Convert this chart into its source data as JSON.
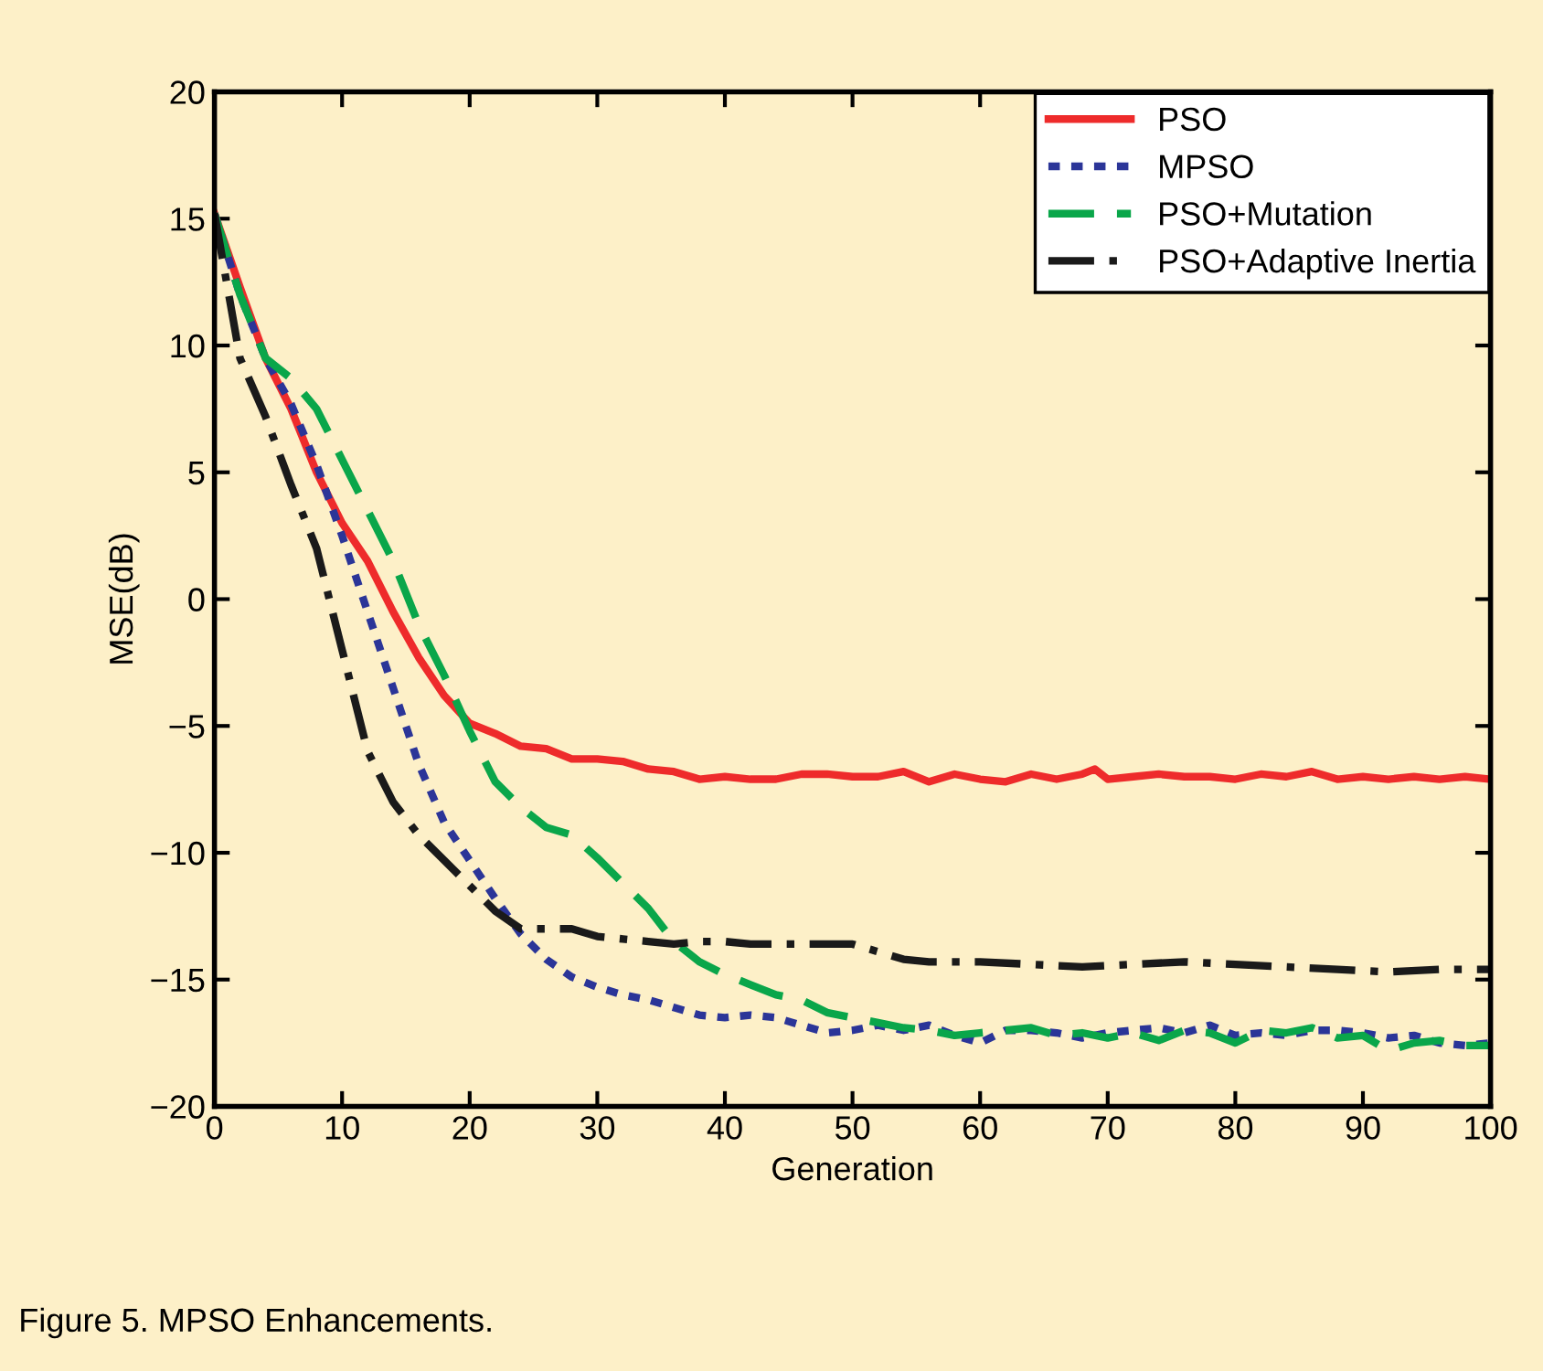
{
  "chart_data": {
    "type": "line",
    "xlabel": "Generation",
    "ylabel": "MSE(dB)",
    "xlim": [
      0,
      100
    ],
    "ylim": [
      -20,
      20
    ],
    "xticks": [
      0,
      10,
      20,
      30,
      40,
      50,
      60,
      70,
      80,
      90,
      100
    ],
    "yticks": [
      -20,
      -15,
      -10,
      -5,
      0,
      5,
      10,
      15,
      20
    ],
    "grid": false,
    "legend": "top right",
    "annotations": [
      "Figure 5. MPSO Enhancements."
    ],
    "series": [
      {
        "name": "PSO",
        "color": "#ee2b2b",
        "line_style": "solid",
        "x": [
          0,
          2,
          4,
          6,
          8,
          10,
          12,
          14,
          16,
          18,
          20,
          22,
          24,
          26,
          28,
          30,
          32,
          34,
          36,
          38,
          40,
          42,
          44,
          46,
          48,
          50,
          52,
          54,
          56,
          58,
          60,
          62,
          64,
          66,
          68,
          69,
          70,
          72,
          74,
          76,
          78,
          80,
          82,
          84,
          86,
          88,
          90,
          92,
          94,
          96,
          98,
          100
        ],
        "values": [
          15.2,
          12.3,
          9.5,
          7.5,
          5,
          3,
          1.5,
          -0.5,
          -2.3,
          -3.8,
          -4.9,
          -5.3,
          -5.8,
          -5.9,
          -6.3,
          -6.3,
          -6.4,
          -6.7,
          -6.8,
          -7.1,
          -7.0,
          -7.1,
          -7.1,
          -6.9,
          -6.9,
          -7.0,
          -7.0,
          -6.8,
          -7.2,
          -6.9,
          -7.1,
          -7.2,
          -6.9,
          -7.1,
          -6.9,
          -6.7,
          -7.1,
          -7.0,
          -6.9,
          -7.0,
          -7.0,
          -7.1,
          -6.9,
          -7.0,
          -6.8,
          -7.1,
          -7.0,
          -7.1,
          -7.0,
          -7.1,
          -7.0,
          -7.1
        ]
      },
      {
        "name": "MPSO",
        "color": "#2b3598",
        "line_style": "dotted",
        "x": [
          0,
          2,
          4,
          6,
          8,
          10,
          12,
          14,
          16,
          18,
          20,
          22,
          24,
          26,
          28,
          30,
          32,
          34,
          36,
          38,
          40,
          42,
          44,
          46,
          48,
          50,
          52,
          54,
          56,
          58,
          60,
          62,
          64,
          66,
          68,
          70,
          72,
          74,
          76,
          78,
          80,
          82,
          84,
          86,
          88,
          90,
          92,
          94,
          96,
          98,
          100
        ],
        "values": [
          15.2,
          12,
          9.5,
          7.7,
          5.3,
          2.5,
          -0.5,
          -3.5,
          -6.5,
          -8.8,
          -10.3,
          -11.8,
          -13.2,
          -14.2,
          -14.9,
          -15.3,
          -15.6,
          -15.8,
          -16.1,
          -16.4,
          -16.5,
          -16.4,
          -16.5,
          -16.8,
          -17.1,
          -17.0,
          -16.8,
          -17.0,
          -16.8,
          -17.2,
          -17.5,
          -17.0,
          -17.0,
          -17.1,
          -17.3,
          -17.1,
          -17.0,
          -16.9,
          -17.1,
          -16.8,
          -17.2,
          -17.1,
          -17.2,
          -17.0,
          -17.0,
          -17.1,
          -17.3,
          -17.2,
          -17.5,
          -17.6,
          -17.5
        ]
      },
      {
        "name": "PSO+Mutation",
        "color": "#0aa64a",
        "line_style": "dashed",
        "x": [
          0,
          2,
          4,
          6,
          8,
          10,
          12,
          14,
          16,
          18,
          20,
          22,
          24,
          26,
          28,
          30,
          32,
          34,
          36,
          38,
          40,
          42,
          44,
          46,
          48,
          50,
          52,
          54,
          56,
          58,
          60,
          62,
          64,
          66,
          68,
          70,
          72,
          74,
          76,
          78,
          80,
          82,
          84,
          86,
          88,
          90,
          92,
          94,
          96,
          98,
          100
        ],
        "values": [
          15.2,
          12,
          9.5,
          8.7,
          7.5,
          5.5,
          3.5,
          1.5,
          -1.0,
          -3.0,
          -5.2,
          -7.2,
          -8.2,
          -9.0,
          -9.3,
          -10.2,
          -11.2,
          -12.2,
          -13.5,
          -14.3,
          -14.8,
          -15.2,
          -15.6,
          -15.8,
          -16.3,
          -16.5,
          -16.7,
          -16.9,
          -17.0,
          -17.2,
          -17.1,
          -17.0,
          -16.9,
          -17.2,
          -17.1,
          -17.3,
          -17.1,
          -17.4,
          -17.0,
          -17.1,
          -17.5,
          -17.0,
          -17.1,
          -16.9,
          -17.3,
          -17.2,
          -17.8,
          -17.5,
          -17.4,
          -17.6,
          -17.6
        ]
      },
      {
        "name": "PSO+Adaptive Inertia",
        "color": "#1a1a1a",
        "line_style": "dashdot",
        "x": [
          0,
          2,
          4,
          6,
          8,
          10,
          12,
          14,
          16,
          18,
          20,
          22,
          24,
          26,
          28,
          30,
          32,
          34,
          36,
          38,
          40,
          42,
          44,
          46,
          48,
          50,
          52,
          54,
          56,
          60,
          64,
          68,
          72,
          76,
          80,
          84,
          88,
          92,
          96,
          100
        ],
        "values": [
          15.2,
          9.5,
          7.2,
          4.5,
          2.0,
          -2.0,
          -6.0,
          -8.0,
          -9.3,
          -10.3,
          -11.3,
          -12.3,
          -13.0,
          -13.0,
          -13.0,
          -13.3,
          -13.4,
          -13.5,
          -13.6,
          -13.5,
          -13.5,
          -13.6,
          -13.6,
          -13.6,
          -13.6,
          -13.6,
          -13.9,
          -14.2,
          -14.3,
          -14.3,
          -14.4,
          -14.5,
          -14.4,
          -14.3,
          -14.4,
          -14.5,
          -14.6,
          -14.7,
          -14.6,
          -14.6
        ]
      }
    ]
  }
}
